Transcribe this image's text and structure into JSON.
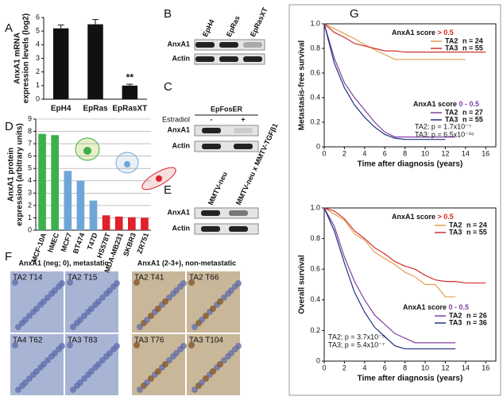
{
  "panel_letters": [
    "A",
    "B",
    "C",
    "D",
    "E",
    "F",
    "G"
  ],
  "blots": {
    "B": {
      "columns": [
        "EpH4",
        "EpRas",
        "EpRasXT"
      ],
      "rows": [
        "AnxA1",
        "Actin"
      ]
    },
    "C": {
      "title": "EpFosER",
      "treatment": "Estradiol",
      "columns": [
        "-",
        "+"
      ],
      "rows": [
        "AnxA1",
        "Actin"
      ]
    },
    "E": {
      "columns": [
        "MMTV-neu",
        "MMTV-neu x MMTV-TGFβ1"
      ],
      "rows": [
        "AnxA1",
        "Actin"
      ]
    }
  },
  "micrographs": {
    "headers": [
      "AnxA1 (neg; 0), metastatic",
      "AnxA1 (2-3+), non-metastatic"
    ],
    "tiles": [
      {
        "label": "TA2 T14",
        "color": "#e03030"
      },
      {
        "label": "TA2 T15",
        "color": "#e03030"
      },
      {
        "label": "TA2 T41",
        "color": "#111111"
      },
      {
        "label": "TA2 T66",
        "color": "#111111"
      },
      {
        "label": "TA4 T62",
        "color": "#e03030"
      },
      {
        "label": "TA3 T83",
        "color": "#e03030"
      },
      {
        "label": "TA3 T76",
        "color": "#111111"
      },
      {
        "label": "TA3 T104",
        "color": "#111111"
      }
    ]
  },
  "chart_data": [
    {
      "type": "bar",
      "ylabel": [
        "AnxA1 mRNA",
        "expression levels (log2)"
      ],
      "categories": [
        "EpH4",
        "EpRas",
        "EpRasXT"
      ],
      "values": [
        5.2,
        5.5,
        1.0
      ],
      "errors": [
        0.25,
        0.35,
        0.1
      ],
      "color": "#111111",
      "annotation": "**",
      "ylim": [
        0,
        6
      ],
      "yticks": [
        0,
        1,
        2,
        3,
        4,
        5,
        6
      ]
    },
    {
      "type": "bar",
      "ylabel": [
        "AnxA1 protein",
        "expression (arbitrary units)"
      ],
      "categories": [
        "MCF-10A",
        "hMEC",
        "MCF7",
        "BT474",
        "T47D",
        "HS578T",
        "MDA-MB231",
        "SKBR3",
        "ZR751"
      ],
      "values": [
        7.8,
        7.7,
        4.8,
        4.0,
        2.4,
        1.2,
        1.1,
        1.05,
        1.0
      ],
      "colors": [
        "#3cb04a",
        "#3cb04a",
        "#6fa6d8",
        "#6fa6d8",
        "#6fa6d8",
        "#e0202a",
        "#e0202a",
        "#e0202a",
        "#e0202a"
      ],
      "ylim": [
        0,
        9
      ],
      "yticks": [
        0,
        1,
        2,
        3,
        4,
        5,
        6,
        7,
        8,
        9
      ],
      "grid": true
    },
    {
      "type": "line",
      "ylabel": "Metastasis-free survival",
      "xlabel": "Time after diagnosis (years)",
      "x": [
        0,
        1,
        2,
        3,
        4,
        5,
        6,
        7,
        8,
        9,
        10,
        11,
        12,
        13,
        14,
        15,
        16
      ],
      "xlim": [
        0,
        17
      ],
      "xticks": [
        0,
        2,
        4,
        6,
        8,
        10,
        12,
        14,
        16
      ],
      "ylim": [
        0,
        1
      ],
      "yticks": [
        0,
        0.2,
        0.4,
        0.6,
        0.8,
        {
          "value": 1,
          "label": "1.0"
        }
      ],
      "groups": [
        {
          "label": "AnxA1 score",
          "range": "> 0.5",
          "range_color": "#e02020"
        },
        {
          "label": "AnxA1 score",
          "range": "0 - 0.5",
          "range_color": "#8040a0"
        }
      ],
      "stats": [
        "TA2; p = 1.7x10⁻⁷",
        "TA3; p = 6.5x10⁻¹⁵"
      ],
      "series": [
        {
          "name": "TA2",
          "n_label": "n = 24",
          "color": "#e0a050",
          "values": [
            1,
            0.96,
            0.92,
            0.88,
            0.83,
            0.79,
            0.75,
            0.71,
            0.71,
            0.71,
            0.71,
            0.71,
            0.71,
            0.71,
            0.71,
            null,
            null
          ]
        },
        {
          "name": "TA3",
          "n_label": "n = 55",
          "color": "#d03030",
          "values": [
            1,
            0.93,
            0.89,
            0.84,
            0.82,
            0.8,
            0.78,
            0.78,
            0.77,
            0.77,
            0.77,
            0.77,
            0.77,
            0.77,
            0.77,
            0.77,
            0.77
          ]
        },
        {
          "name": "TA2",
          "n_label": "n = 27",
          "color": "#8040a0",
          "values": [
            1,
            0.72,
            0.52,
            0.4,
            0.3,
            0.2,
            0.12,
            0.08,
            0.08,
            0.08,
            0.08,
            0.08,
            0.08,
            0.08,
            null,
            null,
            null
          ]
        },
        {
          "name": "TA3",
          "n_label": "n = 55",
          "color": "#203080",
          "values": [
            1,
            0.68,
            0.48,
            0.34,
            0.24,
            0.16,
            0.1,
            0.07,
            0.06,
            0.06,
            0.06,
            0.06,
            0.06,
            null,
            null,
            null,
            null
          ]
        }
      ]
    },
    {
      "type": "line",
      "ylabel": "Overall survival",
      "xlabel": "Time after diagnosis (years)",
      "x": [
        0,
        1,
        2,
        3,
        4,
        5,
        6,
        7,
        8,
        9,
        10,
        11,
        12,
        13,
        14,
        15,
        16
      ],
      "xlim": [
        0,
        17
      ],
      "xticks": [
        0,
        2,
        4,
        6,
        8,
        10,
        12,
        14,
        16
      ],
      "ylim": [
        0,
        1
      ],
      "yticks": [
        0,
        0.2,
        0.4,
        0.6,
        0.8,
        {
          "value": 1,
          "label": "1.0"
        }
      ],
      "groups": [
        {
          "label": "AnxA1 score",
          "range": "> 0.5",
          "range_color": "#e02020"
        },
        {
          "label": "AnxA1 score",
          "range": "0 - 0.5",
          "range_color": "#8040a0"
        }
      ],
      "stats": [
        "TA2; p = 3.7x10⁻⁵",
        "TA3; p = 5.4x10⁻⁷"
      ],
      "series": [
        {
          "name": "TA2",
          "n_label": "n = 24",
          "color": "#e0a050",
          "values": [
            1,
            0.96,
            0.92,
            0.83,
            0.79,
            0.71,
            0.67,
            0.63,
            0.58,
            0.55,
            0.5,
            0.5,
            0.42,
            0.42,
            null,
            null,
            null
          ]
        },
        {
          "name": "TA3",
          "n_label": "n = 55",
          "color": "#d03030",
          "values": [
            1,
            0.98,
            0.93,
            0.85,
            0.8,
            0.74,
            0.7,
            0.65,
            0.62,
            0.6,
            0.56,
            0.53,
            0.52,
            0.52,
            0.51,
            0.51,
            0.51
          ]
        },
        {
          "name": "TA2",
          "n_label": "n = 26",
          "color": "#8040a0",
          "values": [
            1,
            0.88,
            0.68,
            0.52,
            0.4,
            0.3,
            0.24,
            0.18,
            0.15,
            0.12,
            0.12,
            0.12,
            0.12,
            0.12,
            null,
            null,
            null
          ]
        },
        {
          "name": "TA3",
          "n_label": "n = 36",
          "color": "#203080",
          "values": [
            1,
            0.85,
            0.64,
            0.45,
            0.32,
            0.22,
            0.16,
            0.1,
            0.08,
            0.08,
            0.08,
            0.08,
            0.08,
            0.08,
            null,
            null,
            null
          ]
        }
      ]
    }
  ]
}
